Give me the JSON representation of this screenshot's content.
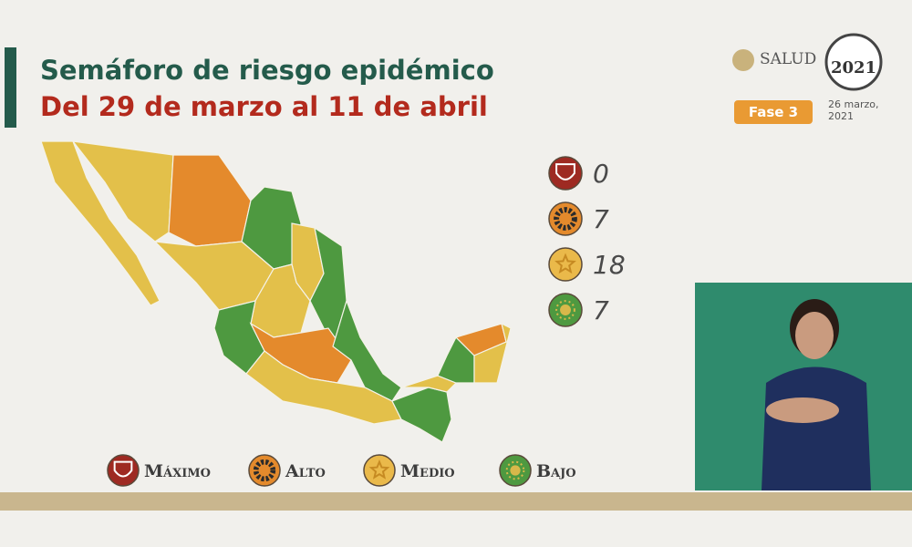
{
  "header": {
    "title": "Semáforo de riesgo epidémico",
    "subtitle": "Del 29 de marzo al 11 de abril",
    "ministry": "SALUD",
    "emblem_year": "2021",
    "phase": "Fase 3",
    "date": "26 marzo, 2021"
  },
  "levels": [
    {
      "label": "Máximo",
      "count": 0
    },
    {
      "label": "Alto",
      "count": 7
    },
    {
      "label": "Medio",
      "count": 18
    },
    {
      "label": "Bajo",
      "count": 7
    }
  ]
}
